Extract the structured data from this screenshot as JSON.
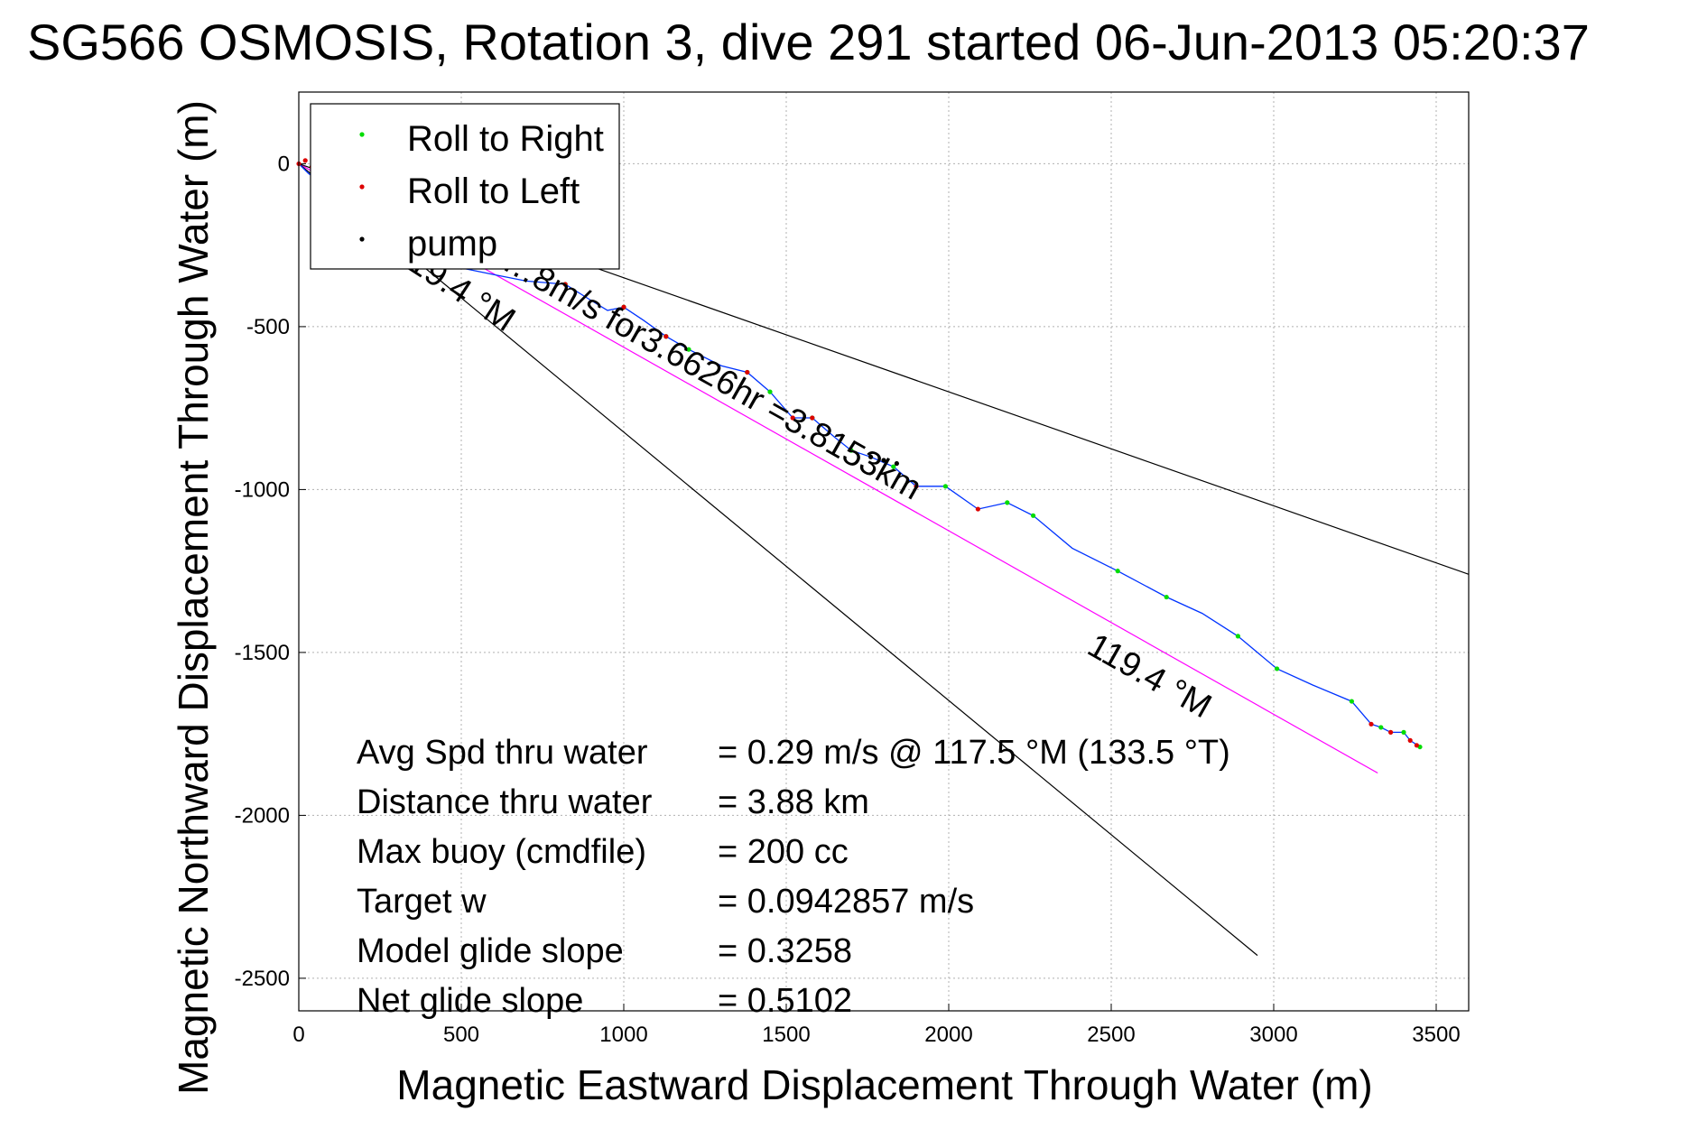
{
  "chart_data": {
    "type": "line",
    "title": "SG566 OSMOSIS, Rotation 3, dive 291 started 06-Jun-2013 05:20:37",
    "xlabel": "Magnetic Eastward Displacement Through Water (m)",
    "ylabel": "Magnetic Northward Displacement Through Water (m)",
    "xlim": [
      0,
      3600
    ],
    "ylim": [
      -2600,
      220
    ],
    "xticks": [
      0,
      500,
      1000,
      1500,
      2000,
      2500,
      3000,
      3500
    ],
    "yticks": [
      0,
      -500,
      -1000,
      -1500,
      -2000,
      -2500
    ],
    "grid": true,
    "legend_position": "top-left",
    "legend": [
      {
        "label": "Roll to Right",
        "color": "#00dd00"
      },
      {
        "label": "Roll to Left",
        "color": "#dd0000"
      },
      {
        "label": "pump",
        "color": "#000000"
      }
    ],
    "track": {
      "color": "#0033ff",
      "x": [
        0,
        30,
        100,
        200,
        300,
        400,
        500,
        600,
        700,
        820,
        900,
        950,
        1000,
        1060,
        1130,
        1200,
        1300,
        1380,
        1450,
        1520,
        1580,
        1650,
        1700,
        1760,
        1830,
        1900,
        1990,
        2090,
        2180,
        2260,
        2380,
        2520,
        2670,
        2780,
        2890,
        3010,
        3120,
        3240,
        3300,
        3330,
        3360,
        3400,
        3420,
        3450
      ],
      "y": [
        0,
        -30,
        -80,
        -150,
        -230,
        -280,
        -320,
        -340,
        -360,
        -370,
        -420,
        -450,
        -440,
        -480,
        -530,
        -570,
        -620,
        -640,
        -700,
        -780,
        -780,
        -840,
        -880,
        -900,
        -930,
        -990,
        -990,
        -1060,
        -1040,
        -1080,
        -1180,
        -1250,
        -1330,
        -1380,
        -1450,
        -1550,
        -1600,
        -1650,
        -1720,
        -1730,
        -1745,
        -1745,
        -1770,
        -1790
      ]
    },
    "markers": {
      "roll_right": {
        "x": [
          820,
          1000,
          1130,
          1200,
          1380,
          1450,
          1580,
          1700,
          1830,
          1990,
          2180,
          2260,
          2520,
          2670,
          2890,
          3010,
          3240,
          3330,
          3400,
          3450
        ],
        "y": [
          -370,
          -440,
          -530,
          -570,
          -640,
          -700,
          -780,
          -880,
          -930,
          -990,
          -1040,
          -1080,
          -1250,
          -1330,
          -1450,
          -1550,
          -1650,
          -1730,
          -1745,
          -1790
        ]
      },
      "roll_left": {
        "x": [
          0,
          20,
          40,
          820,
          1000,
          1130,
          1380,
          1520,
          1580,
          1900,
          2090,
          3300,
          3360,
          3420,
          3440
        ],
        "y": [
          0,
          10,
          -10,
          -370,
          -440,
          -530,
          -640,
          -780,
          -780,
          -990,
          -1060,
          -1720,
          -1745,
          -1770,
          -1785
        ]
      },
      "pump": {
        "x": [
          1760,
          1800,
          1840
        ],
        "y": [
          -900,
          -910,
          -920
        ]
      }
    },
    "reference_lines": [
      {
        "name": "heading",
        "color": "#ff00ff",
        "x": [
          0,
          3320
        ],
        "y": [
          0,
          -1870
        ]
      },
      {
        "name": "bound-upper",
        "color": "#000000",
        "x": [
          0,
          3600
        ],
        "y": [
          0,
          -1260
        ]
      },
      {
        "name": "bound-lower",
        "color": "#000000",
        "x": [
          0,
          2950
        ],
        "y": [
          0,
          -2430
        ]
      }
    ],
    "annotations": [
      {
        "text": "…8m/s for3.6626hr =3.8153km",
        "x": 620,
        "y": -320,
        "rotation": 29.4
      },
      {
        "text": "19.4 °M",
        "x": 330,
        "y": -320,
        "rotation": 33
      },
      {
        "text": "119.4 °M",
        "x": 2420,
        "y": -1500,
        "rotation": 29.4
      }
    ],
    "stats": [
      {
        "label": "Avg Spd thru water",
        "value": "=  0.29 m/s @ 117.5 °M (133.5 °T)"
      },
      {
        "label": "Distance thru water",
        "value": "=  3.88 km"
      },
      {
        "label": "Max buoy (cmdfile)",
        "value": "= 200 cc"
      },
      {
        "label": "Target w",
        "value": "= 0.0942857 m/s"
      },
      {
        "label": "Model glide slope",
        "value": "= 0.3258"
      },
      {
        "label": "Net glide slope",
        "value": "= 0.5102"
      }
    ]
  }
}
